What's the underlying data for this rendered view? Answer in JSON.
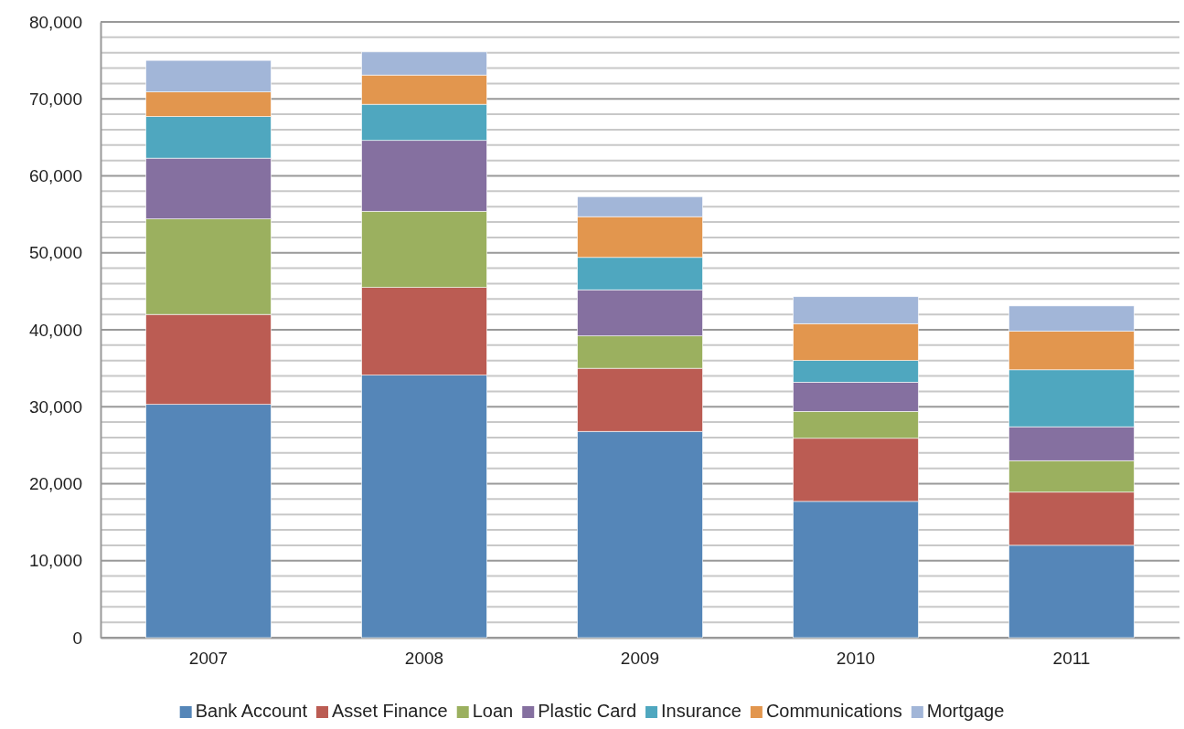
{
  "chart_data": {
    "type": "bar",
    "stacked": true,
    "categories": [
      "2007",
      "2008",
      "2009",
      "2010",
      "2011"
    ],
    "series": [
      {
        "name": "Bank Account",
        "color": "#5586b8",
        "values": [
          30300,
          34100,
          26800,
          17700,
          12000
        ]
      },
      {
        "name": "Asset Finance",
        "color": "#bb5c53",
        "values": [
          11700,
          11400,
          8200,
          8200,
          6900
        ]
      },
      {
        "name": "Loan",
        "color": "#9bb05f",
        "values": [
          12400,
          9900,
          4200,
          3500,
          4100
        ]
      },
      {
        "name": "Plastic Card",
        "color": "#8570a0",
        "values": [
          7900,
          9200,
          6000,
          3800,
          4400
        ]
      },
      {
        "name": "Insurance",
        "color": "#4fa7bf",
        "values": [
          5400,
          4700,
          4200,
          2800,
          7400
        ]
      },
      {
        "name": "Communications",
        "color": "#e2964e",
        "values": [
          3200,
          3800,
          5300,
          4800,
          5000
        ]
      },
      {
        "name": "Mortgage",
        "color": "#a2b6d8",
        "values": [
          4100,
          3000,
          2600,
          3500,
          3300
        ]
      }
    ],
    "ylim": [
      0,
      80000
    ],
    "yticks": [
      0,
      {
        "value": 2000,
        "label": null
      },
      {
        "value": 4000,
        "label": null
      },
      {
        "value": 6000,
        "label": null
      },
      {
        "value": 8000,
        "label": null
      },
      {
        "value": 10000,
        "label": "10,000"
      },
      {
        "value": 12000,
        "label": null
      },
      {
        "value": 14000,
        "label": null
      },
      {
        "value": 16000,
        "label": null
      },
      {
        "value": 18000,
        "label": null
      },
      {
        "value": 20000,
        "label": "20,000"
      },
      {
        "value": 22000,
        "label": null
      },
      {
        "value": 24000,
        "label": null
      },
      {
        "value": 26000,
        "label": null
      },
      {
        "value": 28000,
        "label": null
      },
      {
        "value": 30000,
        "label": "30,000"
      },
      {
        "value": 32000,
        "label": null
      },
      {
        "value": 34000,
        "label": null
      },
      {
        "value": 36000,
        "label": null
      },
      {
        "value": 38000,
        "label": null
      },
      {
        "value": 40000,
        "label": "40,000"
      },
      {
        "value": 42000,
        "label": null
      },
      {
        "value": 44000,
        "label": null
      },
      {
        "value": 46000,
        "label": null
      },
      {
        "value": 48000,
        "label": null
      },
      {
        "value": 50000,
        "label": "50,000"
      },
      {
        "value": 52000,
        "label": null
      },
      {
        "value": 54000,
        "label": null
      },
      {
        "value": 56000,
        "label": null
      },
      {
        "value": 58000,
        "label": null
      },
      {
        "value": 60000,
        "label": "60,000"
      },
      {
        "value": 62000,
        "label": null
      },
      {
        "value": 64000,
        "label": null
      },
      {
        "value": 66000,
        "label": null
      },
      {
        "value": 68000,
        "label": null
      },
      {
        "value": 70000,
        "label": "70,000"
      },
      {
        "value": 72000,
        "label": null
      },
      {
        "value": 74000,
        "label": null
      },
      {
        "value": 76000,
        "label": null
      },
      {
        "value": 78000,
        "label": null
      },
      {
        "value": 80000,
        "label": "80,000"
      }
    ],
    "grid": "y",
    "legend": "bottom"
  }
}
